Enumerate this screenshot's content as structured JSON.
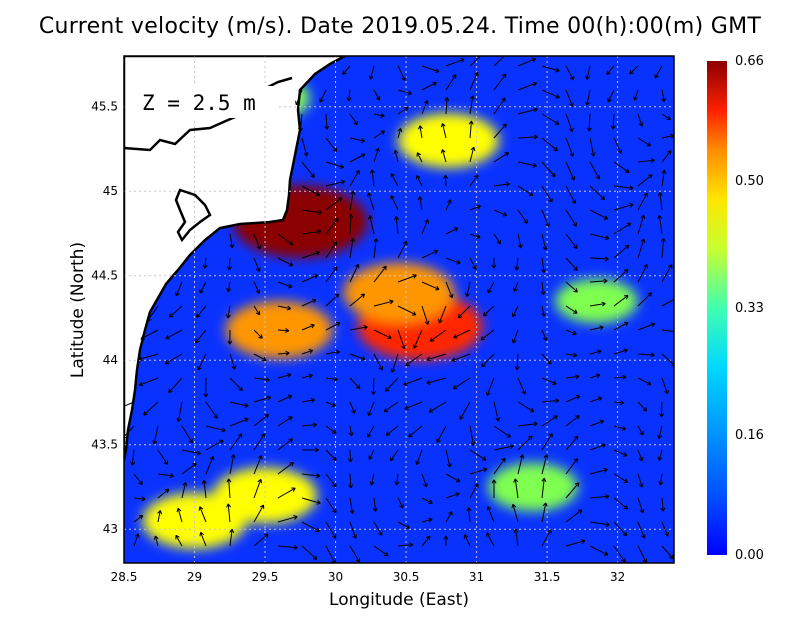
{
  "title": "Current velocity (m/s). Date 2019.05.24. Time 00(h):00(m) GMT",
  "depth_label": "Z = 2.5 m",
  "axes": {
    "xlabel": "Longitude (East)",
    "ylabel": "Latitude (North)",
    "xlim": [
      28.5,
      32.4
    ],
    "ylim": [
      42.8,
      45.8
    ],
    "x_ticks": [
      28.5,
      29,
      29.5,
      30,
      30.5,
      31,
      31.5,
      32
    ],
    "x_tick_labels": [
      "28.5",
      "29",
      "29.5",
      "30",
      "30.5",
      "31",
      "31.5",
      "32"
    ],
    "y_ticks": [
      43,
      43.5,
      44,
      44.5,
      45,
      45.5
    ],
    "y_tick_labels": [
      "43",
      "43.5",
      "44",
      "44.5",
      "45",
      "45.5"
    ],
    "grid": true
  },
  "colorbar": {
    "min": 0.0,
    "max": 0.66,
    "tick_values": [
      0.0,
      0.16,
      0.33,
      0.5,
      0.66
    ],
    "tick_labels": [
      "0.00",
      "0.16",
      "0.33",
      "0.50",
      "0.66"
    ],
    "colormap": [
      "#0000ff",
      "#0078ff",
      "#00c8ff",
      "#00ffd0",
      "#7fff50",
      "#ffff00",
      "#ff9600",
      "#ff2800",
      "#8b0000"
    ]
  },
  "colors": {
    "land": "#ffffff",
    "coastline": "#000000",
    "grid": "#c8c8c8",
    "arrow": "#000000"
  },
  "chart_data": {
    "type": "heatmap",
    "quantity": "current velocity (m/s)",
    "high_speed_features": [
      {
        "lon": 29.75,
        "lat": 44.82,
        "speed": 0.62
      },
      {
        "lon": 30.6,
        "lat": 44.2,
        "speed": 0.55
      },
      {
        "lon": 30.45,
        "lat": 44.4,
        "speed": 0.45
      },
      {
        "lon": 30.8,
        "lat": 45.3,
        "speed": 0.38
      },
      {
        "lon": 29.6,
        "lat": 44.18,
        "speed": 0.42
      },
      {
        "lon": 29.5,
        "lat": 43.2,
        "speed": 0.4
      },
      {
        "lon": 29.0,
        "lat": 43.05,
        "speed": 0.4
      },
      {
        "lon": 29.5,
        "lat": 45.55,
        "speed": 0.3
      },
      {
        "lon": 31.4,
        "lat": 43.25,
        "speed": 0.3
      },
      {
        "lon": 31.85,
        "lat": 44.35,
        "speed": 0.25
      }
    ]
  }
}
